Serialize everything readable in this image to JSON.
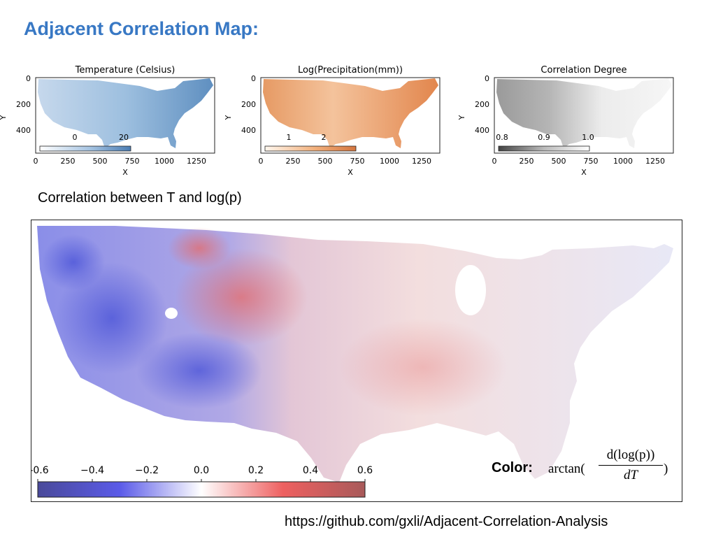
{
  "slide_title": "Adjacent Correlation Map:",
  "subheading": "Correlation between T and log(p)",
  "formula": {
    "label": "Color:",
    "function": "arctan(",
    "numerator": "d(log(p))",
    "denominator": "dT",
    "close": ")"
  },
  "url": "https://github.com/gxli/Adjacent-Correlation-Analysis",
  "colors": {
    "title": "#3878c4",
    "temperature_cmap": [
      "#ffffff",
      "#8fb3d8",
      "#4a7cb3"
    ],
    "precip_cmap": [
      "#fff7ee",
      "#f2b07c",
      "#d5763f"
    ],
    "correlation_cmap": [
      "#444444",
      "#bbbbbb",
      "#ffffff"
    ],
    "main_cmap": [
      "#4a4ac8",
      "#ffffff",
      "#e04545"
    ]
  },
  "chart_data": [
    {
      "type": "heatmap",
      "title": "Temperature (Celsius)",
      "xlabel": "X",
      "ylabel": "Y",
      "xticks": [
        "0",
        "250",
        "500",
        "750",
        "1000",
        "1250"
      ],
      "yticks": [
        "0",
        "200",
        "400"
      ],
      "xlim": [
        0,
        1400
      ],
      "ylim": [
        0,
        600
      ],
      "colorbar": {
        "ticks": [
          "0",
          "20"
        ],
        "range": [
          -10,
          30
        ],
        "location": "lower-left inset"
      }
    },
    {
      "type": "heatmap",
      "title": "Log(Precipitation(mm))",
      "xlabel": "X",
      "ylabel": "Y",
      "xticks": [
        "0",
        "250",
        "500",
        "750",
        "1000",
        "1250"
      ],
      "yticks": [
        "0",
        "200",
        "400"
      ],
      "xlim": [
        0,
        1400
      ],
      "ylim": [
        0,
        600
      ],
      "colorbar": {
        "ticks": [
          "1",
          "2"
        ],
        "range": [
          0,
          3
        ],
        "location": "lower-left inset"
      }
    },
    {
      "type": "heatmap",
      "title": "Correlation Degree",
      "xlabel": "X",
      "ylabel": "Y",
      "xticks": [
        "0",
        "250",
        "500",
        "750",
        "1000",
        "1250"
      ],
      "yticks": [
        "0",
        "200",
        "400"
      ],
      "xlim": [
        0,
        1400
      ],
      "ylim": [
        0,
        600
      ],
      "colorbar": {
        "ticks": [
          "0.8",
          "0.9",
          "1.0"
        ],
        "range": [
          0.8,
          1.0
        ],
        "location": "lower-left inset"
      }
    },
    {
      "type": "heatmap",
      "title": "",
      "colorbar": {
        "ticks": [
          "-0.6",
          "−0.4",
          "−0.2",
          "0.0",
          "0.2",
          "0.4",
          "0.6"
        ],
        "range": [
          -0.6,
          0.6
        ],
        "location": "lower-left inset"
      }
    }
  ]
}
